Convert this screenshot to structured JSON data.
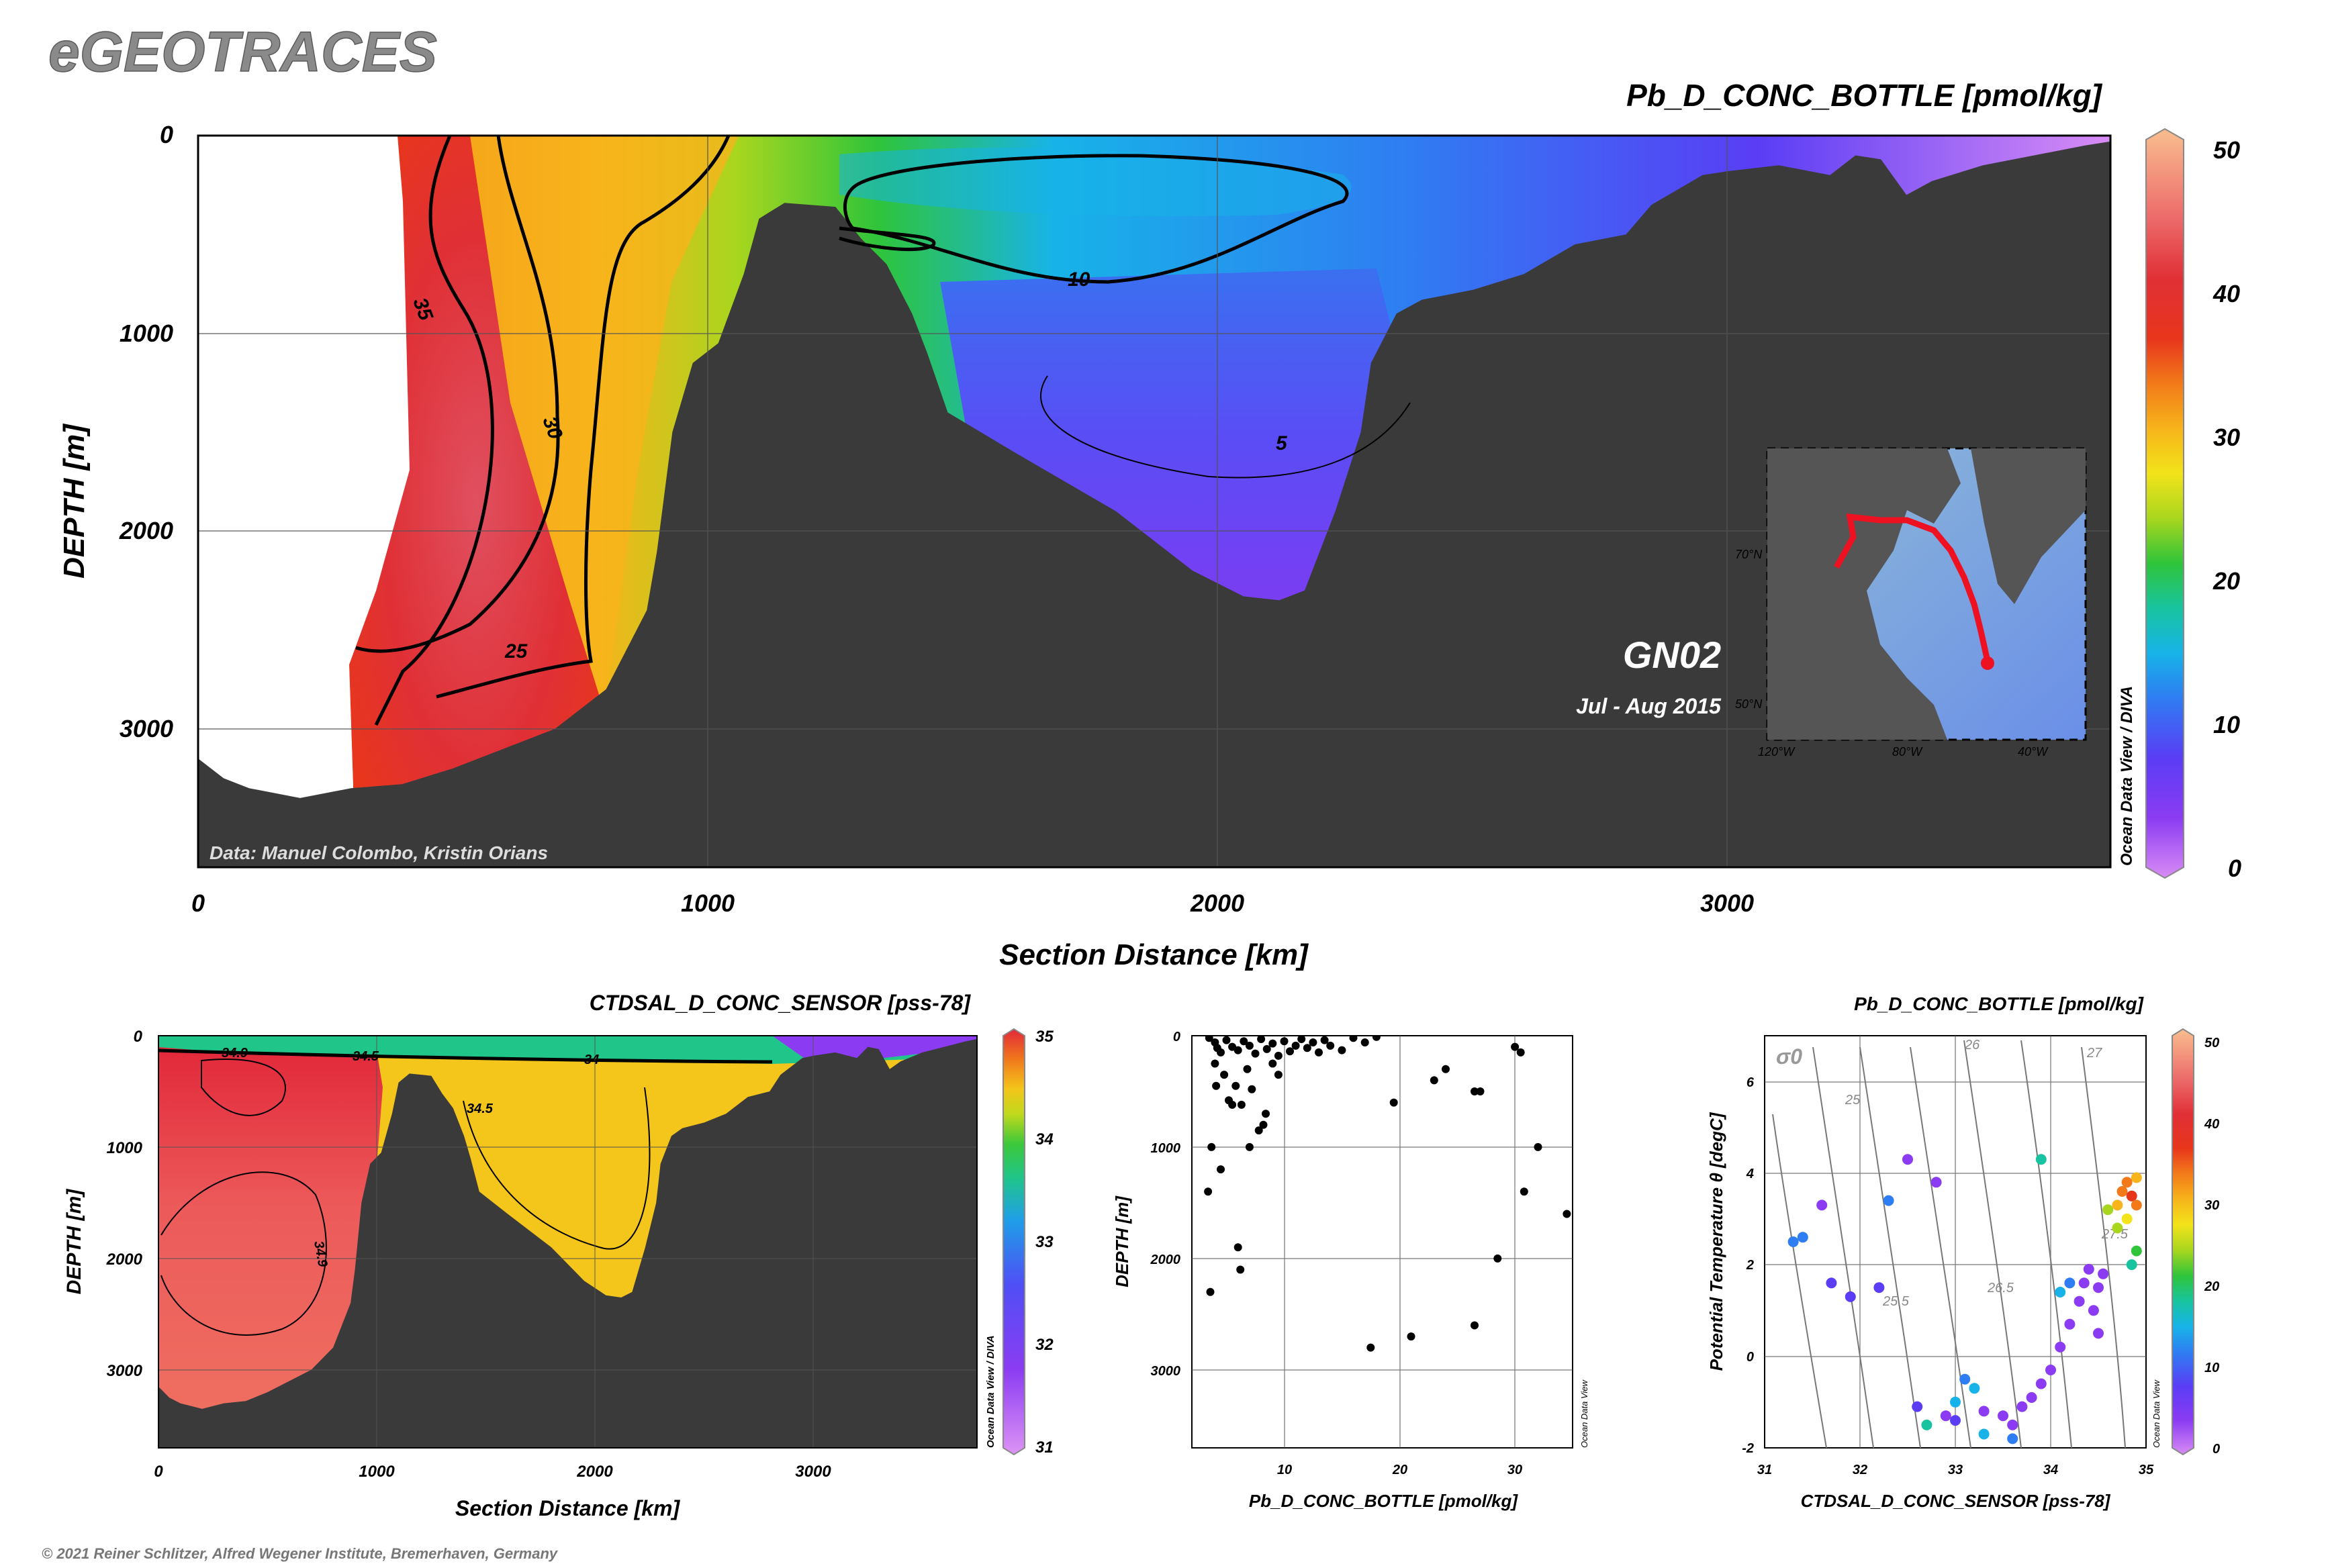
{
  "logo": "eGEOTRACES",
  "copyright": "© 2021 Reiner Schlitzer, Alfred Wegener Institute, Bremerhaven, Germany",
  "main_section": {
    "title": "Pb_D_CONC_BOTTLE [pmol/kg]",
    "credit": "Data: Manuel Colombo, Kristin Orians",
    "cruise": "GN02",
    "dates": "Jul - Aug 2015",
    "watermark": "Ocean Data View / DIVA",
    "contour_labels": [
      "35",
      "30",
      "25",
      "10",
      "5"
    ],
    "map_inset": {
      "lat_labels": [
        "70°N",
        "50°N"
      ],
      "lon_labels": [
        "120°W",
        "80°W",
        "40°W"
      ],
      "watermark": "Ocean Data View"
    }
  },
  "sal_section": {
    "title": "CTDSAL_D_CONC_SENSOR [pss-78]",
    "watermark": "Ocean Data View / DIVA",
    "contour_labels": [
      "34.9",
      "34.5",
      "34",
      "34.5",
      "34.9",
      "34.9"
    ]
  },
  "profile": {
    "watermark": "Ocean Data View"
  },
  "ts": {
    "title": "Pb_D_CONC_BOTTLE [pmol/kg]",
    "sigma_label": "σ0",
    "isopycnal_labels": [
      "25",
      "26",
      "27",
      "25.5",
      "26.5",
      "27.5"
    ],
    "watermark": "Ocean Data View"
  },
  "chart_data": [
    {
      "type": "heatmap",
      "name_in_image": "Pb_D_CONC_BOTTLE [pmol/kg]",
      "xlabel": "Section Distance [km]",
      "ylabel": "DEPTH [m]",
      "xlim": [
        0,
        3750
      ],
      "ylim": [
        3700,
        0
      ],
      "xticks": [
        0,
        1000,
        2000,
        3000
      ],
      "yticks": [
        0,
        1000,
        2000,
        3000
      ],
      "colorbar": {
        "range": [
          0,
          50
        ],
        "ticks": [
          0,
          10,
          20,
          30,
          40,
          50
        ]
      },
      "contour_levels": [
        5,
        10,
        25,
        30,
        35
      ],
      "bathymetry_depth_m": [
        [
          0,
          3150
        ],
        [
          50,
          3250
        ],
        [
          100,
          3300
        ],
        [
          200,
          3350
        ],
        [
          300,
          3300
        ],
        [
          400,
          3280
        ],
        [
          500,
          3200
        ],
        [
          600,
          3100
        ],
        [
          700,
          3000
        ],
        [
          800,
          2800
        ],
        [
          880,
          2400
        ],
        [
          900,
          2100
        ],
        [
          930,
          1500
        ],
        [
          970,
          1150
        ],
        [
          1020,
          1050
        ],
        [
          1070,
          700
        ],
        [
          1100,
          420
        ],
        [
          1150,
          340
        ],
        [
          1250,
          360
        ],
        [
          1300,
          520
        ],
        [
          1350,
          650
        ],
        [
          1400,
          900
        ],
        [
          1430,
          1100
        ],
        [
          1470,
          1400
        ],
        [
          1600,
          1600
        ],
        [
          1800,
          1900
        ],
        [
          1950,
          2200
        ],
        [
          2050,
          2330
        ],
        [
          2120,
          2350
        ],
        [
          2170,
          2300
        ],
        [
          2230,
          1900
        ],
        [
          2280,
          1500
        ],
        [
          2300,
          1150
        ],
        [
          2350,
          900
        ],
        [
          2400,
          830
        ],
        [
          2500,
          780
        ],
        [
          2600,
          700
        ],
        [
          2700,
          550
        ],
        [
          2800,
          500
        ],
        [
          2850,
          350
        ],
        [
          2950,
          200
        ],
        [
          3000,
          180
        ],
        [
          3100,
          150
        ],
        [
          3200,
          200
        ],
        [
          3250,
          100
        ],
        [
          3300,
          120
        ],
        [
          3350,
          300
        ],
        [
          3400,
          230
        ],
        [
          3500,
          150
        ],
        [
          3600,
          100
        ],
        [
          3700,
          50
        ],
        [
          3750,
          30
        ]
      ]
    },
    {
      "type": "heatmap",
      "name_in_image": "CTDSAL_D_CONC_SENSOR [pss-78]",
      "xlabel": "Section Distance [km]",
      "ylabel": "DEPTH [m]",
      "xlim": [
        0,
        3750
      ],
      "ylim": [
        3700,
        0
      ],
      "xticks": [
        0,
        1000,
        2000,
        3000
      ],
      "yticks": [
        0,
        1000,
        2000,
        3000
      ],
      "colorbar": {
        "range": [
          31,
          35
        ],
        "ticks": [
          31,
          32,
          33,
          34,
          35
        ]
      },
      "contour_levels": [
        34,
        34.5,
        34.9
      ]
    },
    {
      "type": "scatter",
      "xlabel": "Pb_D_CONC_BOTTLE [pmol/kg]",
      "ylabel": "DEPTH [m]",
      "xlim": [
        2,
        35
      ],
      "ylim": [
        3700,
        0
      ],
      "xticks": [
        10,
        20,
        30
      ],
      "yticks": [
        0,
        1000,
        2000,
        3000
      ],
      "points": [
        [
          3.5,
          20
        ],
        [
          4,
          60
        ],
        [
          4.2,
          110
        ],
        [
          4.5,
          150
        ],
        [
          5,
          40
        ],
        [
          5.5,
          100
        ],
        [
          6,
          130
        ],
        [
          6.5,
          50
        ],
        [
          7,
          90
        ],
        [
          7.5,
          160
        ],
        [
          8,
          30
        ],
        [
          8.5,
          120
        ],
        [
          9,
          70
        ],
        [
          9.5,
          180
        ],
        [
          10,
          50
        ],
        [
          10.5,
          140
        ],
        [
          11,
          90
        ],
        [
          11.5,
          30
        ],
        [
          12,
          110
        ],
        [
          12.5,
          60
        ],
        [
          13,
          150
        ],
        [
          13.5,
          40
        ],
        [
          14,
          90
        ],
        [
          15,
          130
        ],
        [
          16,
          20
        ],
        [
          17,
          60
        ],
        [
          18,
          10
        ],
        [
          4,
          250
        ],
        [
          4.8,
          350
        ],
        [
          5.2,
          580
        ],
        [
          5.8,
          450
        ],
        [
          6.3,
          620
        ],
        [
          6.8,
          300
        ],
        [
          7.2,
          480
        ],
        [
          8.2,
          800
        ],
        [
          8.4,
          700
        ],
        [
          7.8,
          850
        ],
        [
          9,
          250
        ],
        [
          9.5,
          350
        ],
        [
          4.1,
          450
        ],
        [
          5.5,
          620
        ],
        [
          3.7,
          1000
        ],
        [
          3.4,
          1400
        ],
        [
          4.5,
          1200
        ],
        [
          7,
          1000
        ],
        [
          6,
          1900
        ],
        [
          6.2,
          2100
        ],
        [
          3.6,
          2300
        ],
        [
          19.5,
          600
        ],
        [
          23,
          400
        ],
        [
          24,
          300
        ],
        [
          26.5,
          500
        ],
        [
          27,
          500
        ],
        [
          30,
          100
        ],
        [
          30.5,
          150
        ],
        [
          32,
          1000
        ],
        [
          30.8,
          1400
        ],
        [
          34.5,
          1600
        ],
        [
          28.5,
          2000
        ],
        [
          26.5,
          2600
        ],
        [
          21,
          2700
        ],
        [
          17.5,
          2800
        ]
      ]
    },
    {
      "type": "scatter",
      "xlabel": "CTDSAL_D_CONC_SENSOR [pss-78]",
      "ylabel": "Potential Temperature θ [degC]",
      "xlim": [
        31,
        35
      ],
      "ylim": [
        -2,
        7
      ],
      "xticks": [
        31,
        32,
        33,
        34,
        35
      ],
      "yticks": [
        -2,
        0,
        2,
        4,
        6
      ],
      "colorbar": {
        "range": [
          0,
          50
        ],
        "ticks": [
          0,
          10,
          20,
          30,
          40,
          50
        ]
      },
      "points_S_theta_Pb": [
        [
          31.6,
          3.3,
          6
        ],
        [
          31.4,
          2.6,
          14
        ],
        [
          31.3,
          2.5,
          12
        ],
        [
          31.7,
          1.6,
          8
        ],
        [
          31.9,
          1.3,
          10
        ],
        [
          32.2,
          1.5,
          11
        ],
        [
          32.3,
          3.4,
          13
        ],
        [
          32.5,
          4.3,
          7
        ],
        [
          32.8,
          3.8,
          5
        ],
        [
          33.1,
          -0.5,
          14
        ],
        [
          33.2,
          -0.7,
          16
        ],
        [
          32.6,
          -1.1,
          9
        ],
        [
          32.9,
          -1.3,
          6
        ],
        [
          33.0,
          -1.4,
          8
        ],
        [
          33.3,
          -1.2,
          5
        ],
        [
          33.5,
          -1.3,
          4
        ],
        [
          33.6,
          -1.5,
          6
        ],
        [
          33.7,
          -1.1,
          7
        ],
        [
          33.8,
          -0.9,
          5
        ],
        [
          33.9,
          -0.6,
          6
        ],
        [
          34.0,
          -0.3,
          5
        ],
        [
          34.1,
          0.2,
          5
        ],
        [
          34.2,
          0.7,
          6
        ],
        [
          34.3,
          1.2,
          5
        ],
        [
          34.35,
          1.6,
          7
        ],
        [
          34.4,
          1.9,
          6
        ],
        [
          34.45,
          1.0,
          5
        ],
        [
          34.5,
          0.5,
          4
        ],
        [
          34.5,
          1.5,
          5
        ],
        [
          34.55,
          1.8,
          6
        ],
        [
          34.2,
          1.6,
          13
        ],
        [
          34.1,
          1.4,
          15
        ],
        [
          33.9,
          4.3,
          18
        ],
        [
          34.7,
          3.3,
          31
        ],
        [
          34.75,
          3.6,
          33
        ],
        [
          34.8,
          3.8,
          35
        ],
        [
          34.85,
          3.5,
          36
        ],
        [
          34.9,
          3.3,
          34
        ],
        [
          34.8,
          3.0,
          28
        ],
        [
          34.7,
          2.8,
          25
        ],
        [
          34.9,
          2.3,
          22
        ],
        [
          34.85,
          2.0,
          20
        ],
        [
          34.9,
          3.9,
          32
        ],
        [
          34.6,
          3.2,
          26
        ],
        [
          33.0,
          -1.0,
          16
        ],
        [
          32.7,
          -1.5,
          18
        ],
        [
          33.3,
          -1.7,
          15
        ],
        [
          33.6,
          -1.8,
          12
        ]
      ]
    }
  ]
}
